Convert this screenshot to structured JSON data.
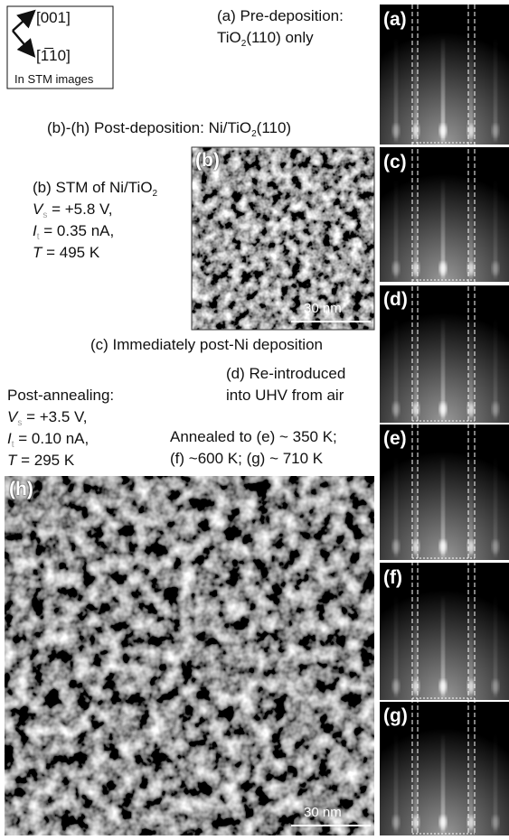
{
  "legend": {
    "direction_1": "[001]",
    "direction_2": "[1̅10]",
    "caption": "In STM images"
  },
  "panel_a_caption": {
    "line_1": "(a) Pre-deposition:",
    "line_2_main": "TiO",
    "line_2_sub": "2",
    "line_2_rest": "(110) only"
  },
  "post_deposition_caption": {
    "main": "(b)-(h) Post-deposition: Ni/TiO",
    "sub": "2",
    "rest": "(110)"
  },
  "stm_b_caption": {
    "title_main": "(b) STM of Ni/TiO",
    "title_sub": "2",
    "voltage_symbol": "V",
    "voltage_sub": "s",
    "voltage_value": "= +5.8 V,",
    "current_symbol": "I",
    "current_sub": "t",
    "current_value": "= 0.35 nA,",
    "temperature_symbol": "T",
    "temperature_value": "= 495 K"
  },
  "panel_c_caption": "(c) Immediately post-Ni deposition",
  "panel_d_caption": {
    "line_1": "(d) Re-introduced",
    "line_2": "into UHV from air"
  },
  "stm_h_caption": {
    "title": "Post-annealing:",
    "voltage_symbol": "V",
    "voltage_sub": "s",
    "voltage_value": "= +3.5 V,",
    "current_symbol": "I",
    "current_sub": "t",
    "current_value": "= 0.10 nA,",
    "temperature_symbol": "T",
    "temperature_value": "= 295 K"
  },
  "anneal_caption": {
    "line_1": "Annealed to (e) ~ 350 K;",
    "line_2": "(f) ~600 K; (g) ~ 710 K"
  },
  "panel_labels": {
    "a": "(a)",
    "b": "(b)",
    "c": "(c)",
    "d": "(d)",
    "e": "(e)",
    "f": "(f)",
    "g": "(g)",
    "h": "(h)"
  },
  "scale_bars": {
    "b": "30 nm",
    "h": "30 nm"
  }
}
